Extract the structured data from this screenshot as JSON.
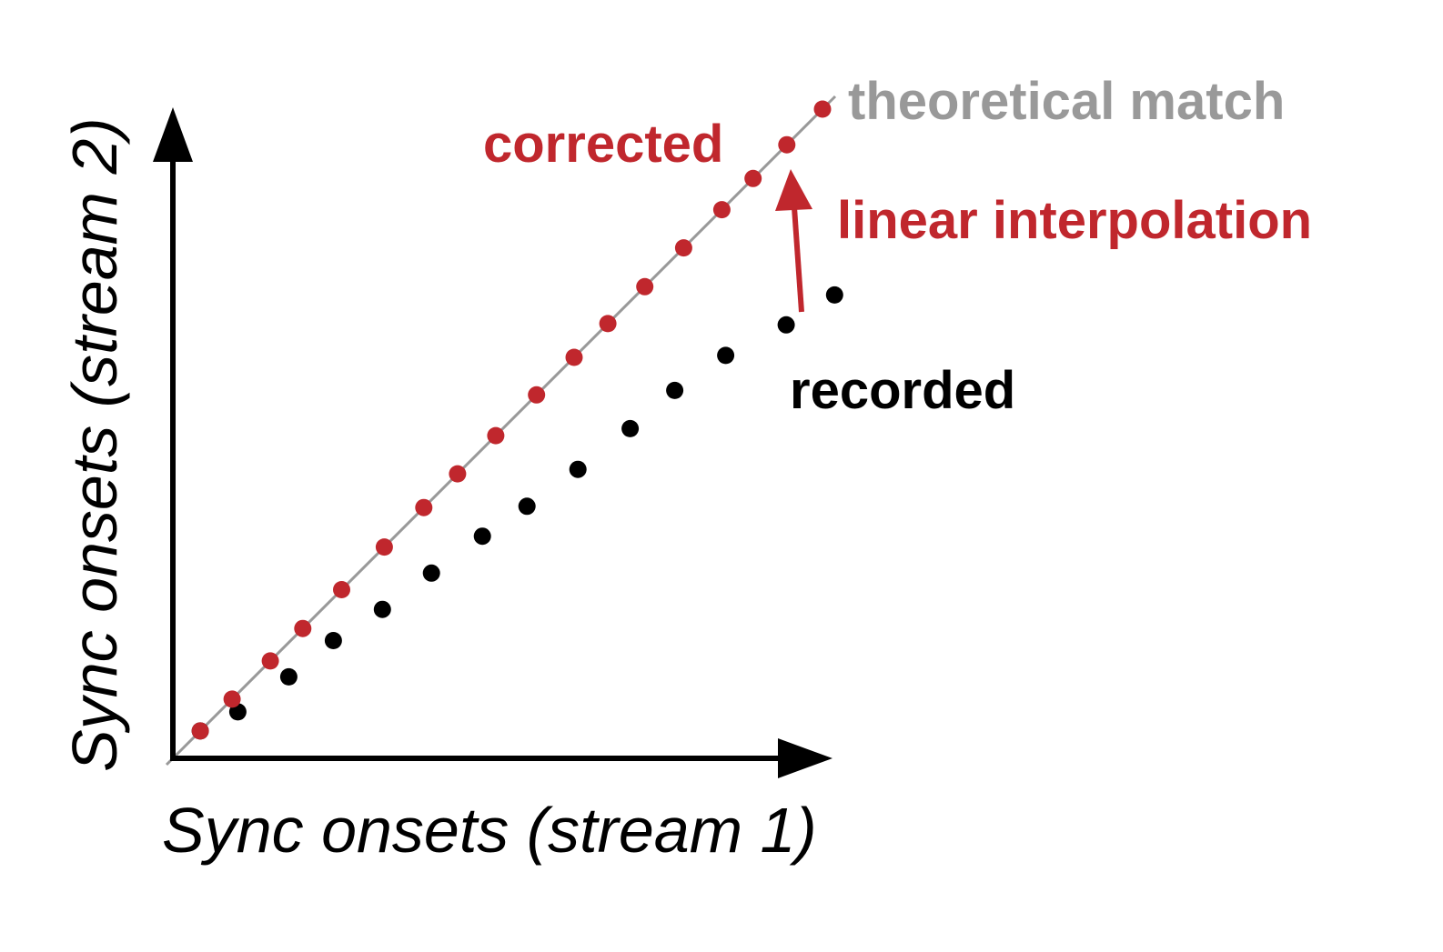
{
  "colors": {
    "corrected": "#c0272d",
    "recorded": "#000000",
    "theoretical": "#999999",
    "axis": "#000000"
  },
  "labels": {
    "theoretical": "theoretical match",
    "corrected": "corrected",
    "interpolation": "linear interpolation",
    "recorded": "recorded"
  },
  "axes": {
    "x_title": "Sync onsets (stream 1)",
    "y_title": "Sync onsets (stream 2)"
  },
  "chart_data": {
    "type": "scatter",
    "x_range": [
      0,
      100
    ],
    "y_range": [
      0,
      100
    ],
    "theoretical_line": {
      "x": [
        0,
        100
      ],
      "y": [
        0,
        100
      ]
    },
    "series": [
      {
        "name": "corrected",
        "color": "#c0272d",
        "x": [
          4.3,
          9.3,
          15.3,
          20.4,
          26.5,
          33.2,
          39.4,
          44.7,
          50.7,
          57.1,
          63.0,
          68.3,
          74.1,
          80.2,
          86.2,
          91.1,
          96.4,
          102.0
        ],
        "y": [
          4.3,
          9.3,
          15.3,
          20.4,
          26.5,
          33.2,
          39.4,
          44.7,
          50.7,
          57.1,
          63.0,
          68.3,
          74.1,
          80.2,
          86.2,
          91.1,
          96.4,
          102.0
        ]
      },
      {
        "name": "recorded",
        "color": "#000000",
        "x": [
          4.3,
          10.2,
          18.2,
          25.2,
          32.9,
          40.6,
          48.6,
          55.6,
          63.6,
          71.8,
          78.8,
          86.8,
          96.3,
          103.9
        ],
        "y": [
          4.3,
          7.3,
          12.8,
          18.5,
          23.4,
          29.1,
          34.9,
          39.6,
          45.4,
          51.8,
          57.8,
          63.3,
          68.1,
          72.8
        ]
      }
    ],
    "annotation": {
      "text": "linear interpolation",
      "from": [
        96.3,
        68.1
      ],
      "to": [
        96.3,
        91.1
      ]
    }
  }
}
